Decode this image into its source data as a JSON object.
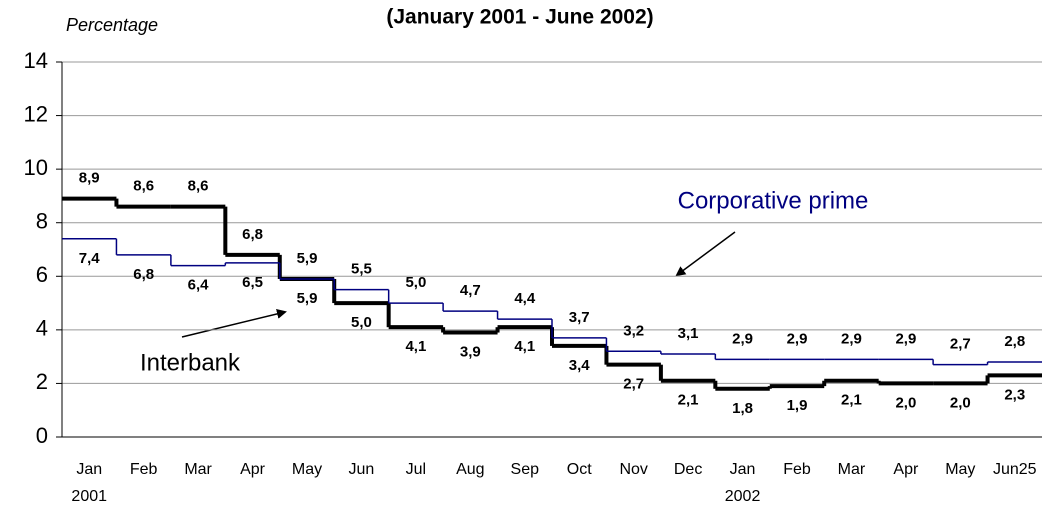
{
  "chart_data": {
    "type": "step",
    "title": "(January 2001 - June 2002)",
    "y_label": "Percentage",
    "categories": [
      "Jan",
      "Feb",
      "Mar",
      "Apr",
      "May",
      "Jun",
      "Jul",
      "Aug",
      "Sep",
      "Oct",
      "Nov",
      "Dec",
      "Jan",
      "Feb",
      "Mar",
      "Apr",
      "May",
      "Jun25"
    ],
    "category_years": [
      "2001",
      null,
      null,
      null,
      null,
      null,
      null,
      null,
      null,
      null,
      null,
      null,
      "2002",
      null,
      null,
      null,
      null,
      null
    ],
    "series": [
      {
        "name": "Interbank",
        "color": "#000000",
        "values": [
          8.9,
          8.6,
          8.6,
          6.8,
          5.9,
          5.0,
          4.1,
          3.9,
          4.1,
          3.4,
          2.7,
          2.1,
          1.8,
          1.9,
          2.1,
          2.0,
          2.0,
          2.3
        ],
        "value_labels": [
          "8,9",
          "8,6",
          "8,6",
          "6,8",
          "5,9",
          "5,0",
          "4,1",
          "3,9",
          "4,1",
          "3,4",
          "2,7",
          "2,1",
          "1,8",
          "1,9",
          "2,1",
          "2,0",
          "2,0",
          "2,3"
        ]
      },
      {
        "name": "Corporative prime",
        "color": "#000080",
        "values": [
          7.4,
          6.8,
          6.4,
          6.5,
          5.9,
          5.5,
          5.0,
          4.7,
          4.4,
          3.7,
          3.2,
          3.1,
          2.9,
          2.9,
          2.9,
          2.9,
          2.7,
          2.8
        ],
        "value_labels": [
          "7,4",
          "6,8",
          "6,4",
          "6,5",
          "5,9",
          "5,5",
          "5,0",
          "4,7",
          "4,4",
          "3,7",
          "3,2",
          "3,1",
          "2,9",
          "2,9",
          "2,9",
          "2,9",
          "2,7",
          "2,8"
        ]
      }
    ],
    "ylim": [
      0,
      14
    ],
    "yticks": [
      0,
      2,
      4,
      6,
      8,
      10,
      12,
      14
    ],
    "grid": true
  }
}
